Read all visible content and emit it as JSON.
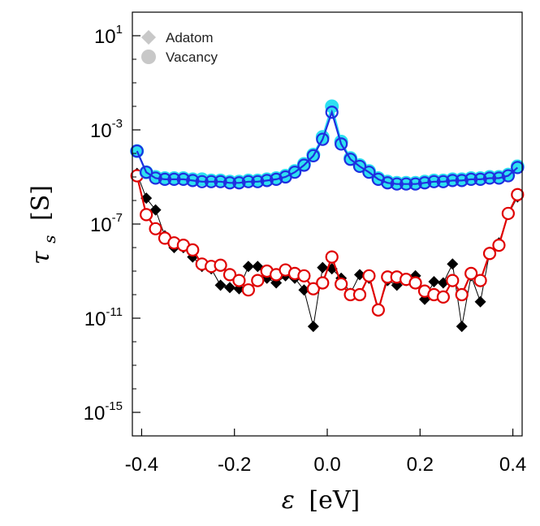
{
  "chart_data": {
    "type": "scatter",
    "title": "",
    "xlabel_symbol": "ε",
    "xlabel_unit": "[eV]",
    "ylabel_symbol": "τ",
    "ylabel_sub": "s",
    "ylabel_unit": "[S]",
    "xlim": [
      -0.42,
      0.42
    ],
    "ylim_log10": [
      -16,
      2
    ],
    "x_ticks": [
      -0.4,
      -0.2,
      0.0,
      0.2,
      0.4
    ],
    "x_tick_labels": [
      "-0.4",
      "-0.2",
      "0.0",
      "0.2",
      "0.4"
    ],
    "y_ticks_log10": [
      1,
      -3,
      -7,
      -11,
      -15
    ],
    "y_tick_labels": [
      {
        "base": "10",
        "exp": "1"
      },
      {
        "base": "10",
        "exp": "-3"
      },
      {
        "base": "10",
        "exp": "-7"
      },
      {
        "base": "10",
        "exp": "-11"
      },
      {
        "base": "10",
        "exp": "-15"
      }
    ],
    "legend": [
      {
        "label": "Adatom",
        "marker": "diamond",
        "color": "#c8c8c8"
      },
      {
        "label": "Vacancy",
        "marker": "circle",
        "color": "#c8c8c8"
      }
    ],
    "series": [
      {
        "name": "Vacancy upper (cyan)",
        "marker": "circle-filled",
        "color": "#2ee0f0",
        "points": [
          [
            -0.41,
            -3.9
          ],
          [
            -0.39,
            -4.8
          ],
          [
            -0.37,
            -5.0
          ],
          [
            -0.35,
            -5.05
          ],
          [
            -0.33,
            -5.05
          ],
          [
            -0.31,
            -5.05
          ],
          [
            -0.29,
            -5.1
          ],
          [
            -0.27,
            -5.1
          ],
          [
            -0.25,
            -5.15
          ],
          [
            -0.23,
            -5.15
          ],
          [
            -0.21,
            -5.2
          ],
          [
            -0.19,
            -5.2
          ],
          [
            -0.17,
            -5.15
          ],
          [
            -0.15,
            -5.15
          ],
          [
            -0.13,
            -5.1
          ],
          [
            -0.11,
            -5.05
          ],
          [
            -0.09,
            -4.95
          ],
          [
            -0.07,
            -4.75
          ],
          [
            -0.05,
            -4.45
          ],
          [
            -0.03,
            -4.05
          ],
          [
            -0.01,
            -3.3
          ],
          [
            0.01,
            -2.0
          ],
          [
            0.03,
            -3.5
          ],
          [
            0.05,
            -4.2
          ],
          [
            0.07,
            -4.5
          ],
          [
            0.09,
            -4.75
          ],
          [
            0.11,
            -5.05
          ],
          [
            0.13,
            -5.2
          ],
          [
            0.15,
            -5.25
          ],
          [
            0.17,
            -5.25
          ],
          [
            0.19,
            -5.25
          ],
          [
            0.21,
            -5.2
          ],
          [
            0.23,
            -5.15
          ],
          [
            0.25,
            -5.15
          ],
          [
            0.27,
            -5.1
          ],
          [
            0.29,
            -5.1
          ],
          [
            0.31,
            -5.05
          ],
          [
            0.33,
            -5.05
          ],
          [
            0.35,
            -5.0
          ],
          [
            0.37,
            -5.0
          ],
          [
            0.39,
            -4.9
          ],
          [
            0.41,
            -4.55
          ]
        ]
      },
      {
        "name": "Vacancy upper (blue)",
        "marker": "circle-open",
        "color": "#1f2ee0",
        "points": [
          [
            -0.41,
            -3.9
          ],
          [
            -0.39,
            -4.8
          ],
          [
            -0.37,
            -5.05
          ],
          [
            -0.35,
            -5.1
          ],
          [
            -0.33,
            -5.1
          ],
          [
            -0.31,
            -5.1
          ],
          [
            -0.29,
            -5.15
          ],
          [
            -0.27,
            -5.2
          ],
          [
            -0.25,
            -5.2
          ],
          [
            -0.23,
            -5.2
          ],
          [
            -0.21,
            -5.25
          ],
          [
            -0.19,
            -5.25
          ],
          [
            -0.17,
            -5.2
          ],
          [
            -0.15,
            -5.2
          ],
          [
            -0.13,
            -5.15
          ],
          [
            -0.11,
            -5.1
          ],
          [
            -0.09,
            -5.0
          ],
          [
            -0.07,
            -4.8
          ],
          [
            -0.05,
            -4.5
          ],
          [
            -0.03,
            -4.1
          ],
          [
            -0.01,
            -3.4
          ],
          [
            0.01,
            -2.25
          ],
          [
            0.03,
            -3.6
          ],
          [
            0.05,
            -4.25
          ],
          [
            0.07,
            -4.55
          ],
          [
            0.09,
            -4.8
          ],
          [
            0.11,
            -5.1
          ],
          [
            0.13,
            -5.25
          ],
          [
            0.15,
            -5.3
          ],
          [
            0.17,
            -5.3
          ],
          [
            0.19,
            -5.3
          ],
          [
            0.21,
            -5.25
          ],
          [
            0.23,
            -5.2
          ],
          [
            0.25,
            -5.2
          ],
          [
            0.27,
            -5.15
          ],
          [
            0.29,
            -5.15
          ],
          [
            0.31,
            -5.1
          ],
          [
            0.33,
            -5.1
          ],
          [
            0.35,
            -5.05
          ],
          [
            0.37,
            -5.05
          ],
          [
            0.39,
            -4.95
          ],
          [
            0.41,
            -4.6
          ]
        ]
      },
      {
        "name": "Adatom lower (black)",
        "marker": "diamond-filled",
        "color": "#000000",
        "points": [
          [
            -0.41,
            -4.85
          ],
          [
            -0.39,
            -5.9
          ],
          [
            -0.37,
            -6.4
          ],
          [
            -0.35,
            -7.5
          ],
          [
            -0.33,
            -8.0
          ],
          [
            -0.31,
            -8.0
          ],
          [
            -0.29,
            -8.4
          ],
          [
            -0.27,
            -8.8
          ],
          [
            -0.25,
            -8.9
          ],
          [
            -0.23,
            -9.6
          ],
          [
            -0.21,
            -9.7
          ],
          [
            -0.19,
            -9.75
          ],
          [
            -0.17,
            -8.8
          ],
          [
            -0.15,
            -8.8
          ],
          [
            -0.13,
            -9.3
          ],
          [
            -0.11,
            -9.5
          ],
          [
            -0.09,
            -9.2
          ],
          [
            -0.07,
            -9.3
          ],
          [
            -0.05,
            -9.8
          ],
          [
            -0.03,
            -11.35
          ],
          [
            -0.01,
            -8.85
          ],
          [
            0.01,
            -8.9
          ],
          [
            0.03,
            -9.3
          ],
          [
            0.05,
            -9.95
          ],
          [
            0.07,
            -9.15
          ],
          [
            0.09,
            -9.3
          ],
          [
            0.11,
            -10.6
          ],
          [
            0.13,
            -9.4
          ],
          [
            0.15,
            -9.6
          ],
          [
            0.17,
            -9.4
          ],
          [
            0.19,
            -9.2
          ],
          [
            0.21,
            -10.2
          ],
          [
            0.23,
            -9.45
          ],
          [
            0.25,
            -9.5
          ],
          [
            0.27,
            -8.7
          ],
          [
            0.29,
            -11.35
          ],
          [
            0.31,
            -9.2
          ],
          [
            0.33,
            -10.3
          ],
          [
            0.35,
            -8.2
          ],
          [
            0.37,
            -7.8
          ],
          [
            0.39,
            -6.6
          ],
          [
            0.41,
            -5.85
          ]
        ]
      },
      {
        "name": "Vacancy lower (red)",
        "marker": "circle-open",
        "color": "#e00000",
        "points": [
          [
            -0.41,
            -4.95
          ],
          [
            -0.39,
            -6.6
          ],
          [
            -0.37,
            -7.2
          ],
          [
            -0.35,
            -7.6
          ],
          [
            -0.33,
            -7.8
          ],
          [
            -0.31,
            -7.9
          ],
          [
            -0.29,
            -8.1
          ],
          [
            -0.27,
            -8.7
          ],
          [
            -0.25,
            -8.8
          ],
          [
            -0.23,
            -8.75
          ],
          [
            -0.21,
            -9.15
          ],
          [
            -0.19,
            -9.4
          ],
          [
            -0.17,
            -9.8
          ],
          [
            -0.15,
            -9.4
          ],
          [
            -0.13,
            -9.0
          ],
          [
            -0.11,
            -9.15
          ],
          [
            -0.09,
            -8.95
          ],
          [
            -0.07,
            -9.1
          ],
          [
            -0.05,
            -9.2
          ],
          [
            -0.03,
            -9.75
          ],
          [
            -0.01,
            -9.5
          ],
          [
            0.01,
            -8.4
          ],
          [
            0.03,
            -9.55
          ],
          [
            0.05,
            -10.0
          ],
          [
            0.07,
            -10.0
          ],
          [
            0.09,
            -9.2
          ],
          [
            0.11,
            -10.65
          ],
          [
            0.13,
            -9.25
          ],
          [
            0.15,
            -9.25
          ],
          [
            0.17,
            -9.35
          ],
          [
            0.19,
            -9.5
          ],
          [
            0.21,
            -9.85
          ],
          [
            0.23,
            -10.0
          ],
          [
            0.25,
            -10.1
          ],
          [
            0.27,
            -9.4
          ],
          [
            0.29,
            -10.0
          ],
          [
            0.31,
            -9.1
          ],
          [
            0.33,
            -9.4
          ],
          [
            0.35,
            -8.25
          ],
          [
            0.37,
            -7.9
          ],
          [
            0.39,
            -6.55
          ],
          [
            0.41,
            -5.75
          ]
        ]
      }
    ]
  }
}
